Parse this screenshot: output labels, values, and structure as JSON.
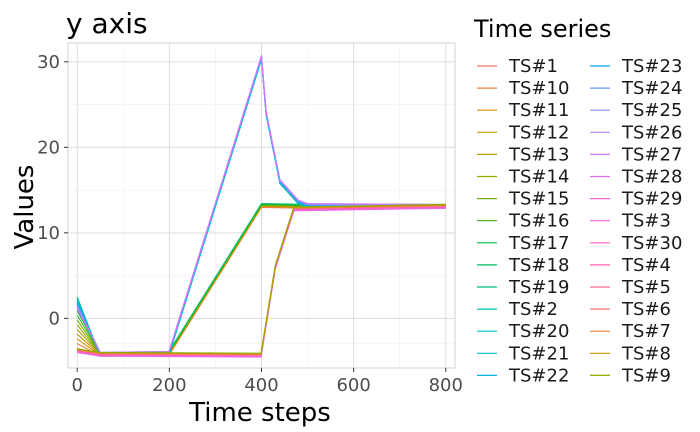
{
  "chart_data": {
    "type": "line",
    "title": "y axis",
    "xlabel": "Time steps",
    "ylabel": "Values",
    "xlim": [
      -20,
      820
    ],
    "ylim": [
      -5.8,
      32.2
    ],
    "xticks": [
      0,
      200,
      400,
      600,
      800
    ],
    "yticks": [
      0,
      10,
      20,
      30
    ],
    "grid": true,
    "legend": {
      "title": "Time series",
      "placement": "right",
      "columns": 2,
      "entries": [
        "TS#1",
        "TS#10",
        "TS#11",
        "TS#12",
        "TS#13",
        "TS#14",
        "TS#15",
        "TS#16",
        "TS#17",
        "TS#18",
        "TS#19",
        "TS#2",
        "TS#20",
        "TS#21",
        "TS#22",
        "TS#23",
        "TS#24",
        "TS#25",
        "TS#26",
        "TS#27",
        "TS#28",
        "TS#29",
        "TS#3",
        "TS#30",
        "TS#4",
        "TS#5",
        "TS#6",
        "TS#7",
        "TS#8",
        "TS#9"
      ]
    },
    "series_groups": [
      {
        "members": [
          "TS#1",
          "TS#10",
          "TS#11",
          "TS#12",
          "TS#13",
          "TS#14",
          "TS#15",
          "TS#16",
          "TS#17",
          "TS#18"
        ],
        "x": [
          0,
          50,
          199,
          400,
          500,
          800
        ],
        "y": [
          -3.5,
          -4.2,
          -4.1,
          13.2,
          13.1,
          13.1
        ]
      },
      {
        "members": [
          "TS#19",
          "TS#2",
          "TS#20",
          "TS#21",
          "TS#22",
          "TS#23",
          "TS#24",
          "TS#25",
          "TS#26",
          "TS#27"
        ],
        "x": [
          0,
          50,
          199,
          400,
          410,
          440,
          480,
          500,
          800
        ],
        "y": [
          2.5,
          -4.2,
          -4.1,
          30.5,
          24,
          16,
          13.6,
          13.2,
          13.1
        ]
      },
      {
        "members": [
          "TS#28",
          "TS#29",
          "TS#3",
          "TS#30",
          "TS#4",
          "TS#5",
          "TS#6",
          "TS#7",
          "TS#8",
          "TS#9"
        ],
        "x": [
          0,
          50,
          399,
          430,
          470,
          800
        ],
        "y": [
          -4.0,
          -4.2,
          -4.3,
          6.0,
          12.8,
          13.1
        ]
      }
    ],
    "colors": [
      "#F8766D",
      "#EC8239",
      "#DB8E00",
      "#C79800",
      "#AFA100",
      "#93AA00",
      "#72B000",
      "#3FB618",
      "#00BA38",
      "#00BE67",
      "#00C08B",
      "#00C1A9",
      "#00BFC4",
      "#00BBDC",
      "#00B4EF",
      "#00A5FF",
      "#619CFF",
      "#8F91FF",
      "#B385FF",
      "#CF78FF",
      "#E36EF6",
      "#F066EA",
      "#F962DD",
      "#FF61C9",
      "#FF64B0",
      "#FF6C91",
      "#F8766D",
      "#EC8239",
      "#C79800",
      "#93AA00"
    ]
  }
}
